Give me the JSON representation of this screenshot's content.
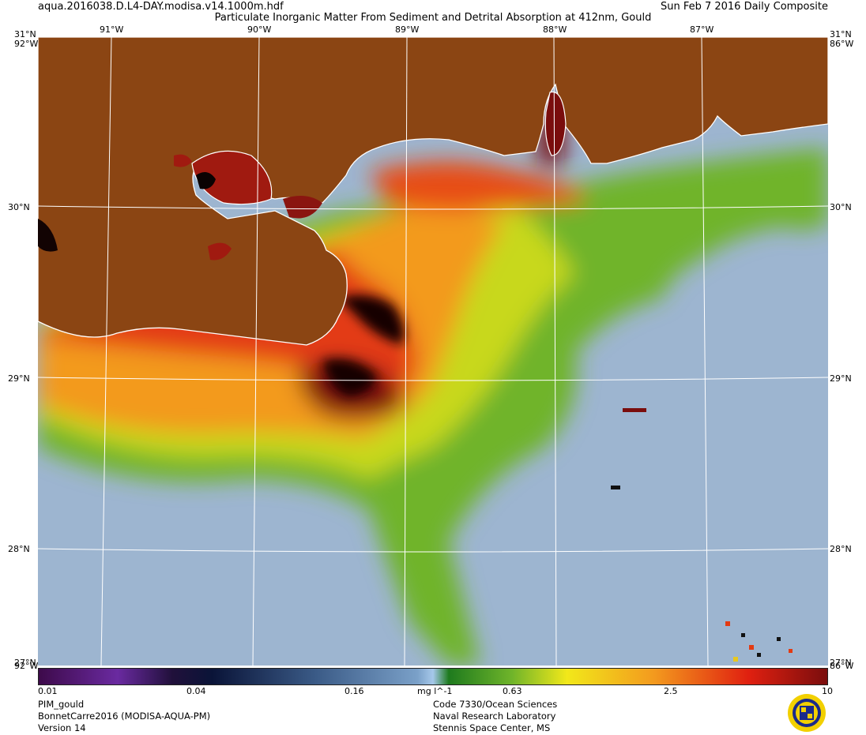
{
  "header": {
    "file_name": "aqua.2016038.D.L4-DAY.modisa.v14.1000m.hdf",
    "product_title": "Particulate Inorganic Matter From Sediment and Detrital Absorption at 412nm, Gould",
    "composite": "Sun Feb  7 2016 Daily Composite"
  },
  "map": {
    "lon_labels": [
      "91°W",
      "90°W",
      "89°W",
      "88°W",
      "87°W"
    ],
    "lat_labels": [
      "30°N",
      "29°N",
      "28°N"
    ],
    "corner_lat_top": "31°N",
    "corner_lat_bottom": "27°N",
    "corner_lon_left": "92°W",
    "corner_lon_right": "86°W",
    "colors": {
      "land": "#8b4513",
      "water_low": "#9db5d0",
      "coastline": "#ffffff",
      "graticule": "#ffffff"
    }
  },
  "colorbar": {
    "ticks": [
      "0.01",
      "0.04",
      "0.16",
      "0.63",
      "2.5",
      "10"
    ],
    "unit": "mg l^-1",
    "scale": "log"
  },
  "footer": {
    "left_lines": [
      "PIM_gould",
      "BonnetCarre2016 (MODISA-AQUA-PM)",
      "Version 14"
    ],
    "mid_lines": [
      "Code 7330/Ocean Sciences",
      "Naval Research Laboratory",
      "Stennis Space Center, MS"
    ]
  },
  "logo": {
    "name": "nrl-seal-icon"
  }
}
